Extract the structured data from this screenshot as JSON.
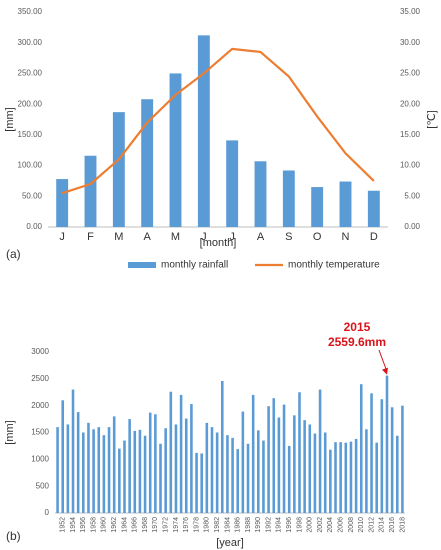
{
  "chart_data": [
    {
      "type": "bar-line",
      "categories": [
        "J",
        "F",
        "M",
        "A",
        "M",
        "J",
        "J",
        "A",
        "S",
        "O",
        "N",
        "D"
      ],
      "series": [
        {
          "name": "monthly rainfall",
          "color": "#5b9bd5",
          "values": [
            78,
            116,
            187,
            208,
            250,
            312,
            141,
            107,
            92,
            65,
            74,
            59
          ]
        },
        {
          "name": "monthly temperature",
          "color": "#ed7d31",
          "axis": "y2",
          "values": [
            5.5,
            7.0,
            11.0,
            17.0,
            21.5,
            25.0,
            29.0,
            28.5,
            24.5,
            18.0,
            12.0,
            7.5
          ]
        }
      ],
      "ylim": [
        0,
        350
      ],
      "yticks": [
        {
          "value": 0,
          "label": "0.00"
        },
        {
          "value": 50,
          "label": "50.00"
        },
        {
          "value": 100,
          "label": "100.00"
        },
        {
          "value": 150,
          "label": "150.00"
        },
        {
          "value": 200,
          "label": "200.00"
        },
        {
          "value": 250,
          "label": "250.00"
        },
        {
          "value": 300,
          "label": "300.00"
        },
        {
          "value": 350,
          "label": "350.00"
        }
      ],
      "y2lim": [
        0,
        35
      ],
      "y2ticks": [
        {
          "value": 0,
          "label": "0.00"
        },
        {
          "value": 5,
          "label": "5.00"
        },
        {
          "value": 10,
          "label": "10.00"
        },
        {
          "value": 15,
          "label": "15.00"
        },
        {
          "value": 20,
          "label": "20.00"
        },
        {
          "value": 25,
          "label": "25.00"
        },
        {
          "value": 30,
          "label": "30.00"
        },
        {
          "value": 35,
          "label": "35.00"
        }
      ],
      "y_label": "[mm]",
      "y2_label": "[℃]",
      "x_label": "[month]",
      "panel": "(a)",
      "legend": "bottom"
    },
    {
      "type": "bar",
      "categories": [
        null,
        "1952",
        null,
        "1954",
        null,
        "1956",
        null,
        "1958",
        null,
        "1960",
        null,
        "1962",
        null,
        "1964",
        null,
        "1966",
        null,
        "1968",
        null,
        "1970",
        null,
        "1972",
        null,
        "1974",
        null,
        "1976",
        null,
        "1978",
        null,
        "1980",
        null,
        "1982",
        null,
        "1984",
        null,
        "1986",
        null,
        "1988",
        null,
        "1990",
        null,
        "1992",
        null,
        "1994",
        null,
        "1996",
        null,
        "1998",
        null,
        "2000",
        null,
        "2002",
        null,
        "2004",
        null,
        "2006",
        null,
        "2008",
        null,
        "2010",
        null,
        "2012",
        null,
        "2014",
        null,
        "2016",
        null,
        "2018"
      ],
      "values": [
        1600,
        2100,
        1650,
        2300,
        1880,
        1500,
        1680,
        1560,
        1600,
        1450,
        1600,
        1800,
        1200,
        1350,
        1750,
        1530,
        1550,
        1440,
        1870,
        1840,
        1290,
        1580,
        2260,
        1650,
        2200,
        1760,
        2030,
        1120,
        1110,
        1680,
        1600,
        1500,
        2460,
        1450,
        1400,
        1190,
        1890,
        1290,
        2200,
        1540,
        1350,
        1990,
        2140,
        1780,
        2020,
        1250,
        1820,
        2250,
        1730,
        1650,
        1480,
        2300,
        1500,
        1180,
        1320,
        1320,
        1310,
        1330,
        1380,
        2400,
        1560,
        2230,
        1310,
        2120,
        2559.6,
        1970,
        1440,
        2000
      ],
      "color": "#5b9bd5",
      "ylim": [
        0,
        3000
      ],
      "yticks": [
        0,
        500,
        1000,
        1500,
        2000,
        2500,
        3000
      ],
      "y_label": "[mm]",
      "x_label": "[year]",
      "panel": "(b)",
      "annotation": [
        "2015",
        "2559.6mm"
      ]
    }
  ]
}
